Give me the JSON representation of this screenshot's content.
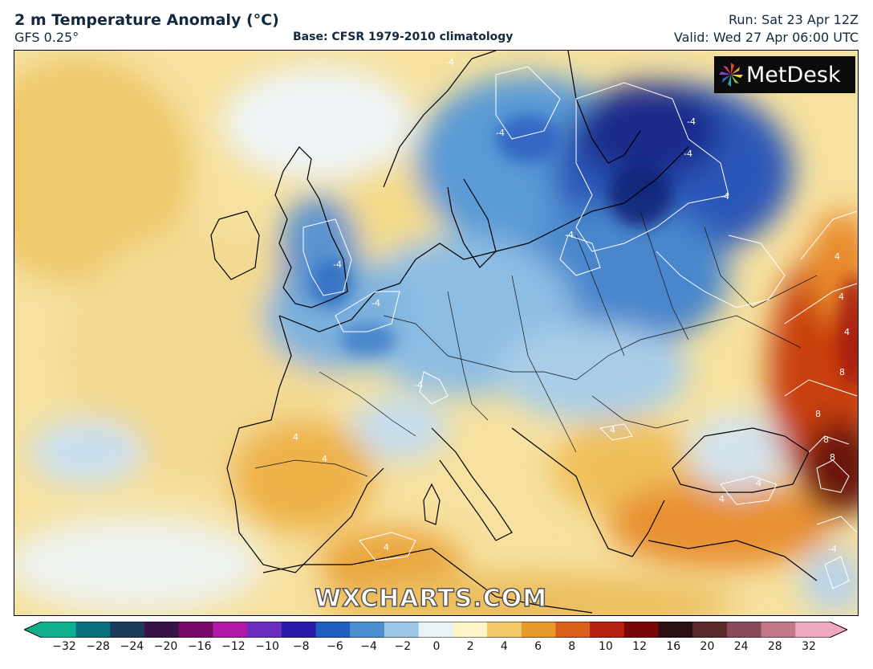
{
  "header": {
    "title": "2 m Temperature Anomaly (°C)",
    "model": "GFS 0.25°",
    "base": "Base: CFSR 1979-2010 climatology",
    "run": "Run: Sat 23 Apr 12Z",
    "valid": "Valid: Wed 27 Apr 06:00 UTC"
  },
  "branding": {
    "logo_text": "MetDesk",
    "watermark": "WXCHARTS.COM"
  },
  "map": {
    "region": "Europe",
    "contour_labels": [
      "-4",
      "-4",
      "-4",
      "-4",
      "-4",
      "-4",
      "-4",
      "-4",
      "-4",
      "-4",
      "4",
      "4",
      "4",
      "4",
      "4",
      "4",
      "4",
      "4",
      "4",
      "8",
      "8",
      "8",
      "8"
    ]
  },
  "colorbar": {
    "ticks": [
      "−32",
      "−28",
      "−24",
      "−20",
      "−16",
      "−12",
      "−10",
      "−8",
      "−6",
      "−4",
      "−2",
      "0",
      "2",
      "4",
      "6",
      "8",
      "10",
      "12",
      "16",
      "20",
      "24",
      "28",
      "32"
    ],
    "colors": [
      "#0fae8c",
      "#0a6f7a",
      "#1b3a5c",
      "#3a1448",
      "#7a0a6a",
      "#b21aa6",
      "#6a2fbf",
      "#2a1aa8",
      "#1f5fbf",
      "#4a90d0",
      "#9cc6e6",
      "#e8f2f8",
      "#fdf6c8",
      "#f3c96a",
      "#e79a2a",
      "#d8601a",
      "#b8200f",
      "#7a0606",
      "#2a1010",
      "#5a2a2a",
      "#8a4a5a",
      "#c07888",
      "#f0a8c0"
    ]
  }
}
